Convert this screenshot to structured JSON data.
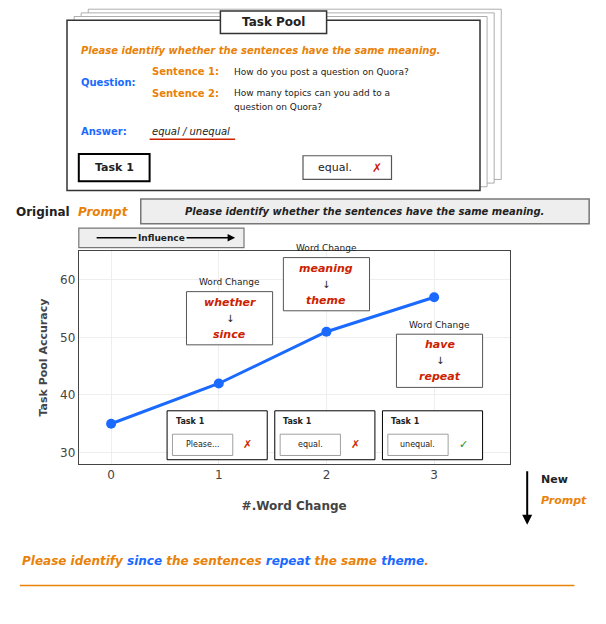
{
  "chart_data": {
    "type": "line",
    "xlabel": "#.Word Change",
    "ylabel": "Task Pool Accuracy",
    "x": [
      0,
      1,
      2,
      3
    ],
    "values": [
      35,
      42,
      51,
      57
    ],
    "color": "#1a6aff",
    "marker": "circle",
    "xlim": [
      -0.3,
      3.7
    ],
    "ylim": [
      28,
      65
    ],
    "xticks": [
      0,
      1,
      2,
      3
    ],
    "yticks": [
      30,
      40,
      50,
      60
    ],
    "grid": true,
    "annotations": [
      {
        "text": "Original"
      },
      {
        "text": "Prompt",
        "color": "#e8820a"
      },
      {
        "text": "Please identify whether the sentences have the same meaning."
      },
      {
        "text": "Influence"
      },
      {
        "text": "Task Pool"
      },
      {
        "text": "Please identify whether the sentences have the same meaning.",
        "color": "#e8820a"
      },
      {
        "text": "Question:",
        "color": "#1a6aff"
      },
      {
        "text": "Sentence 1:",
        "color": "#e8820a"
      },
      {
        "text": "How do you post a question on Quora?"
      },
      {
        "text": "Sentence 2:",
        "color": "#e8820a"
      },
      {
        "text": "How many topics can you add to a"
      },
      {
        "text": "question on Quora?"
      },
      {
        "text": "Answer:",
        "color": "#1a6aff"
      },
      {
        "text": "equal / unequal"
      },
      {
        "text": "Task 1"
      },
      {
        "text": "equal."
      },
      {
        "text": "✗",
        "color": "#cc2200"
      },
      {
        "text": "Word Change"
      },
      {
        "text": "whether",
        "color": "#cc2200"
      },
      {
        "text": "↓"
      },
      {
        "text": "since",
        "color": "#cc2200"
      },
      {
        "text": "Word Change"
      },
      {
        "text": "meaning",
        "color": "#cc2200"
      },
      {
        "text": "↓"
      },
      {
        "text": "theme",
        "color": "#cc2200"
      },
      {
        "text": "Word Change"
      },
      {
        "text": "have",
        "color": "#cc2200"
      },
      {
        "text": "↓"
      },
      {
        "text": "repeat",
        "color": "#cc2200"
      },
      {
        "text": "Task 1"
      },
      {
        "text": "Please..."
      },
      {
        "text": "✗",
        "color": "#cc2200"
      },
      {
        "text": "Task 1"
      },
      {
        "text": "equal."
      },
      {
        "text": "✗",
        "color": "#cc2200"
      },
      {
        "text": "Task 1"
      },
      {
        "text": "unequal."
      },
      {
        "text": "✓",
        "color": "#228B22"
      },
      {
        "text": "New"
      },
      {
        "text": "Prompt",
        "color": "#e8820a"
      },
      {
        "text": "Please identify ",
        "color": "#e8820a"
      },
      {
        "text": "since",
        "color": "#1a6aff"
      },
      {
        "text": " the sentences ",
        "color": "#e8820a"
      },
      {
        "text": "repeat",
        "color": "#1a6aff"
      },
      {
        "text": " the same ",
        "color": "#e8820a"
      },
      {
        "text": "theme",
        "color": "#1a6aff"
      },
      {
        "text": ".",
        "color": "#e8820a"
      }
    ]
  }
}
